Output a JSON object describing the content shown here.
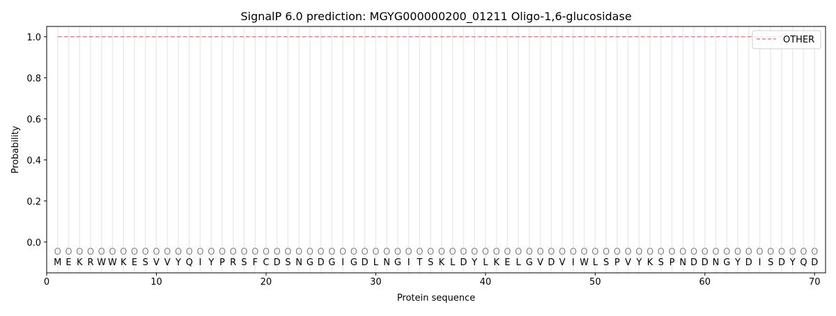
{
  "chart_data": {
    "type": "line",
    "title": "SignalP 6.0 prediction: MGYG000000200_01211 Oligo-1,6-glucosidase",
    "xlabel": "Protein sequence",
    "ylabel": "Probability",
    "xlim": [
      0,
      71
    ],
    "ylim": [
      -0.15,
      1.05
    ],
    "xticks": [
      0,
      10,
      20,
      30,
      40,
      50,
      60,
      70
    ],
    "yticks": [
      "0.0",
      "0.2",
      "0.4",
      "0.6",
      "0.8",
      "1.0"
    ],
    "legend_position": "top-right",
    "sequence": [
      "M",
      "E",
      "K",
      "R",
      "W",
      "W",
      "K",
      "E",
      "S",
      "V",
      "V",
      "Y",
      "Q",
      "I",
      "Y",
      "P",
      "R",
      "S",
      "F",
      "C",
      "D",
      "S",
      "N",
      "G",
      "D",
      "G",
      "I",
      "G",
      "D",
      "L",
      "N",
      "G",
      "I",
      "T",
      "S",
      "K",
      "L",
      "D",
      "Y",
      "L",
      "K",
      "E",
      "L",
      "G",
      "V",
      "D",
      "V",
      "I",
      "W",
      "L",
      "S",
      "P",
      "V",
      "Y",
      "K",
      "S",
      "P",
      "N",
      "D",
      "D",
      "N",
      "G",
      "Y",
      "D",
      "I",
      "S",
      "D",
      "Y",
      "Q",
      "D"
    ],
    "predicted_labels": "OOOOOOOOOOOOOOOOOOOOOOOOOOOOOOOOOOOOOOOOOOOOOOOOOOOOOOOOOOOOOOOOOOOOOO",
    "series": [
      {
        "name": "OTHER",
        "color": "#f08080",
        "style": "dashed",
        "x_start": 1,
        "x_end": 70,
        "value": 1.0
      }
    ]
  }
}
